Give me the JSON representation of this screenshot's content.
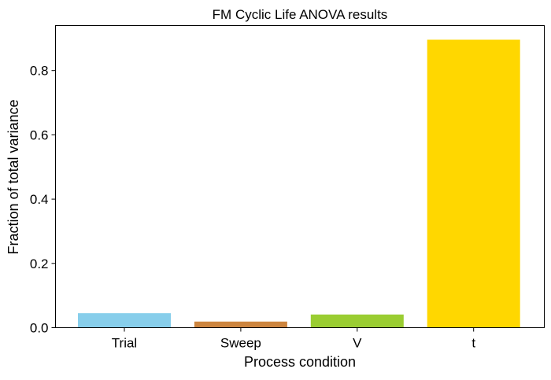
{
  "chart_data": {
    "type": "bar",
    "title": "FM Cyclic Life ANOVA results",
    "xlabel": "Process condition",
    "ylabel": "Fraction of total variance",
    "categories": [
      "Trial",
      "Sweep",
      "V",
      "t"
    ],
    "values": [
      0.045,
      0.019,
      0.041,
      0.896
    ],
    "colors": [
      "#87CEEB",
      "#CD853F",
      "#9ACD32",
      "#FFD700"
    ],
    "ylim": [
      0,
      0.94
    ],
    "yticks": [
      0.0,
      0.2,
      0.4,
      0.6,
      0.8
    ],
    "ytick_labels": [
      "0.0",
      "0.2",
      "0.4",
      "0.6",
      "0.8"
    ],
    "grid": false,
    "legend": "none"
  }
}
